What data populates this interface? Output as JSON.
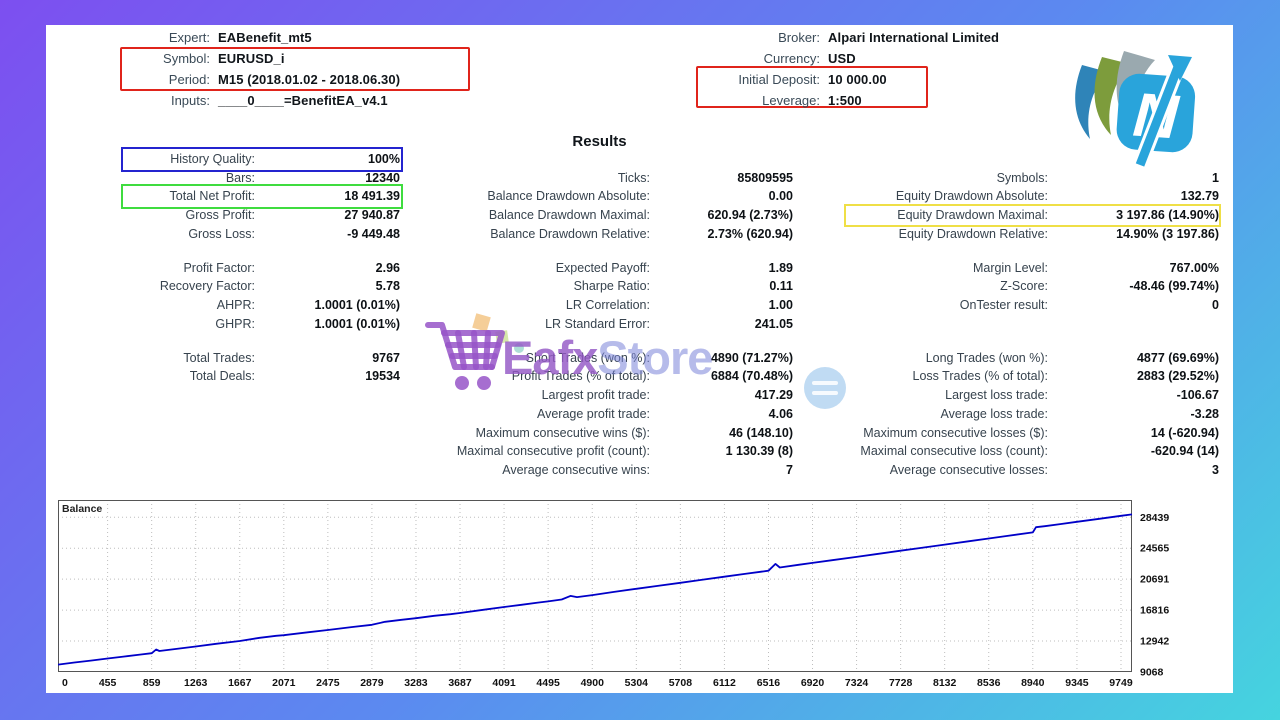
{
  "colors": {
    "frame-start": "#7d4ff0",
    "frame-end": "#45d4df",
    "accent-red": "#e0241b",
    "accent-blue": "#2424cf",
    "accent-green": "#3fdc3f",
    "accent-yellow": "#efdf46",
    "line-color": "#0000c8"
  },
  "header": {
    "left": [
      {
        "label": "Expert:",
        "value": "EABenefit_mt5"
      },
      {
        "label": "Symbol:",
        "value": "EURUSD_i"
      },
      {
        "label": "Period:",
        "value": "M15 (2018.01.02 - 2018.06.30)"
      },
      {
        "label": "Inputs:",
        "value": "____0____=BenefitEA_v4.1"
      }
    ],
    "right": [
      {
        "label": "Broker:",
        "value": "Alpari International Limited"
      },
      {
        "label": "Currency:",
        "value": "USD"
      },
      {
        "label": "Initial Deposit:",
        "value": "10 000.00"
      },
      {
        "label": "Leverage:",
        "value": "1:500"
      }
    ]
  },
  "results_title": "Results",
  "stats": {
    "col1": [
      {
        "label": "History Quality:",
        "value": "100%",
        "box": "blue",
        "name": "stat-history-quality"
      },
      {
        "label": "Bars:",
        "value": "12340"
      },
      {
        "label": "Total Net Profit:",
        "value": "18 491.39",
        "box": "green",
        "name": "stat-total-net-profit"
      },
      {
        "label": "Gross Profit:",
        "value": "27 940.87"
      },
      {
        "label": "Gross Loss:",
        "value": "-9 449.48"
      },
      {
        "gap": true
      },
      {
        "label": "Profit Factor:",
        "value": "2.96"
      },
      {
        "label": "Recovery Factor:",
        "value": "5.78"
      },
      {
        "label": "AHPR:",
        "value": "1.0001 (0.01%)"
      },
      {
        "label": "GHPR:",
        "value": "1.0001 (0.01%)"
      },
      {
        "gap": true
      },
      {
        "label": "Total Trades:",
        "value": "9767"
      },
      {
        "label": "Total Deals:",
        "value": "19534"
      }
    ],
    "col2": [
      {
        "spacer": true
      },
      {
        "label": "Ticks:",
        "value": "85809595"
      },
      {
        "label": "Balance Drawdown Absolute:",
        "value": "0.00"
      },
      {
        "label": "Balance Drawdown Maximal:",
        "value": "620.94 (2.73%)"
      },
      {
        "label": "Balance Drawdown Relative:",
        "value": "2.73% (620.94)"
      },
      {
        "gap": true
      },
      {
        "label": "Expected Payoff:",
        "value": "1.89"
      },
      {
        "label": "Sharpe Ratio:",
        "value": "0.11"
      },
      {
        "label": "LR Correlation:",
        "value": "1.00"
      },
      {
        "label": "LR Standard Error:",
        "value": "241.05"
      },
      {
        "gap": true
      },
      {
        "label": "Short Trades (won %):",
        "value": "4890 (71.27%)"
      },
      {
        "label": "Profit Trades (% of total):",
        "value": "6884 (70.48%)"
      },
      {
        "label": "Largest profit trade:",
        "value": "417.29"
      },
      {
        "label": "Average profit trade:",
        "value": "4.06"
      },
      {
        "label": "Maximum consecutive wins ($):",
        "value": "46 (148.10)"
      },
      {
        "label": "Maximal consecutive profit (count):",
        "value": "1 130.39 (8)"
      },
      {
        "label": "Average consecutive wins:",
        "value": "7"
      }
    ],
    "col3": [
      {
        "spacer": true
      },
      {
        "label": "Symbols:",
        "value": "1"
      },
      {
        "label": "Equity Drawdown Absolute:",
        "value": "132.79"
      },
      {
        "label": "Equity Drawdown Maximal:",
        "value": "3 197.86 (14.90%)",
        "box": "yellow",
        "name": "stat-equity-drawdown-maximal"
      },
      {
        "label": "Equity Drawdown Relative:",
        "value": "14.90% (3 197.86)"
      },
      {
        "gap": true
      },
      {
        "label": "Margin Level:",
        "value": "767.00%"
      },
      {
        "label": "Z-Score:",
        "value": "-48.46 (99.74%)"
      },
      {
        "label": "OnTester result:",
        "value": "0"
      },
      {
        "spacer": true
      },
      {
        "gap": true
      },
      {
        "label": "Long Trades (won %):",
        "value": "4877 (69.69%)"
      },
      {
        "label": "Loss Trades (% of total):",
        "value": "2883 (29.52%)"
      },
      {
        "label": "Largest loss trade:",
        "value": "-106.67"
      },
      {
        "label": "Average loss trade:",
        "value": "-3.28"
      },
      {
        "label": "Maximum consecutive losses ($):",
        "value": "14 (-620.94)"
      },
      {
        "label": "Maximal consecutive loss (count):",
        "value": "-620.94 (14)"
      },
      {
        "label": "Average consecutive losses:",
        "value": "3"
      }
    ]
  },
  "watermark": {
    "text_primary": "Eafx",
    "text_secondary": "Store"
  },
  "chart_data": {
    "type": "line",
    "title": "Balance",
    "series_label": "Balance",
    "legend_position": "top-left-inside",
    "grid": "dotted",
    "line_color": "#0000c8",
    "xlim": [
      0,
      9850
    ],
    "ylim": [
      9068,
      30600
    ],
    "x_ticks": [
      0,
      455,
      859,
      1263,
      1667,
      2071,
      2475,
      2879,
      3283,
      3687,
      4091,
      4495,
      4900,
      5304,
      5708,
      6112,
      6516,
      6920,
      7324,
      7728,
      8132,
      8536,
      8940,
      9345,
      9749
    ],
    "y_ticks": [
      9068,
      12942,
      16816,
      20691,
      24565,
      28439
    ],
    "points": [
      [
        0,
        10000
      ],
      [
        150,
        10260
      ],
      [
        300,
        10500
      ],
      [
        455,
        10760
      ],
      [
        600,
        11000
      ],
      [
        760,
        11260
      ],
      [
        860,
        11420
      ],
      [
        900,
        11880
      ],
      [
        930,
        11700
      ],
      [
        1050,
        11900
      ],
      [
        1263,
        12260
      ],
      [
        1450,
        12600
      ],
      [
        1667,
        12950
      ],
      [
        1850,
        13350
      ],
      [
        2000,
        13600
      ],
      [
        2071,
        13680
      ],
      [
        2300,
        14050
      ],
      [
        2475,
        14320
      ],
      [
        2700,
        14700
      ],
      [
        2879,
        14980
      ],
      [
        3000,
        15350
      ],
      [
        3150,
        15600
      ],
      [
        3283,
        15800
      ],
      [
        3450,
        16100
      ],
      [
        3600,
        16300
      ],
      [
        3687,
        16450
      ],
      [
        3900,
        16850
      ],
      [
        4091,
        17200
      ],
      [
        4250,
        17480
      ],
      [
        4400,
        17750
      ],
      [
        4495,
        17900
      ],
      [
        4620,
        18150
      ],
      [
        4700,
        18600
      ],
      [
        4760,
        18450
      ],
      [
        4900,
        18700
      ],
      [
        5100,
        19100
      ],
      [
        5304,
        19480
      ],
      [
        5500,
        19850
      ],
      [
        5708,
        20230
      ],
      [
        5900,
        20600
      ],
      [
        6112,
        21000
      ],
      [
        6300,
        21350
      ],
      [
        6450,
        21620
      ],
      [
        6516,
        21750
      ],
      [
        6580,
        22600
      ],
      [
        6620,
        22150
      ],
      [
        6800,
        22500
      ],
      [
        6920,
        22720
      ],
      [
        7100,
        23060
      ],
      [
        7324,
        23480
      ],
      [
        7500,
        23820
      ],
      [
        7728,
        24250
      ],
      [
        7900,
        24580
      ],
      [
        8132,
        25020
      ],
      [
        8350,
        25430
      ],
      [
        8536,
        25780
      ],
      [
        8700,
        26090
      ],
      [
        8940,
        26540
      ],
      [
        8970,
        27200
      ],
      [
        9050,
        27320
      ],
      [
        9200,
        27600
      ],
      [
        9345,
        27870
      ],
      [
        9550,
        28250
      ],
      [
        9749,
        28620
      ],
      [
        9850,
        28800
      ]
    ]
  }
}
